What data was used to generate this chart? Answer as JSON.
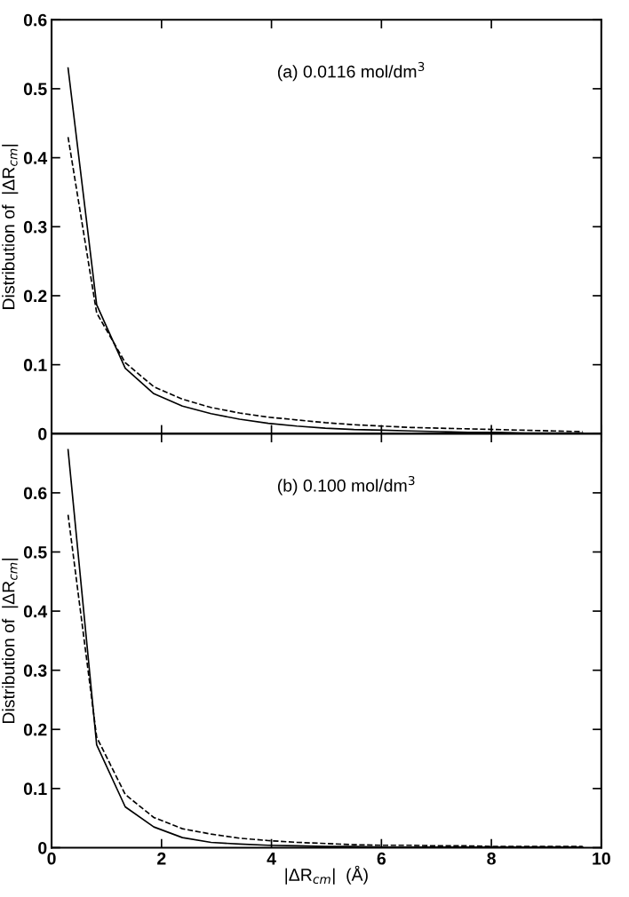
{
  "chart_data": [
    {
      "type": "line",
      "ylabel": "Distribution of  |ΔR$_{cm}$|",
      "annotations": [
        "(a) 0.0116 mol/dm$^{3}$"
      ],
      "x": [
        0.3,
        0.82,
        1.34,
        1.86,
        2.38,
        2.9,
        3.42,
        3.94,
        4.46,
        4.98,
        5.5,
        6.02,
        6.54,
        7.06,
        7.58,
        8.1,
        8.62,
        9.14,
        9.66
      ],
      "series": [
        {
          "color": "#000000",
          "line_style": "solid",
          "values": [
            0.53,
            0.187,
            0.095,
            0.058,
            0.04,
            0.029,
            0.021,
            0.015,
            0.011,
            0.008,
            0.006,
            0.005,
            0.004,
            0.003,
            0.002,
            0.002,
            0.001,
            0.001,
            0.001
          ]
        },
        {
          "color": "#000000",
          "line_style": "dashed",
          "values": [
            0.43,
            0.175,
            0.103,
            0.068,
            0.05,
            0.038,
            0.03,
            0.024,
            0.02,
            0.016,
            0.013,
            0.011,
            0.009,
            0.008,
            0.007,
            0.006,
            0.005,
            0.004,
            0.003
          ]
        }
      ],
      "xlim": [
        0,
        10
      ],
      "xticks": [
        0,
        2,
        4,
        6,
        8,
        10
      ],
      "ylim": [
        0,
        0.6
      ],
      "yticks": [
        0,
        0.1,
        0.2,
        0.3,
        0.4,
        0.5,
        0.6
      ],
      "tick_labels": "y",
      "grid": false,
      "legend": false
    },
    {
      "type": "line",
      "xlabel": "|ΔR$_{cm}$|  (Å)",
      "ylabel": "Distribution of  |ΔR$_{cm}$|",
      "annotations": [
        "(b) 0.100 mol/dm$^{3}$"
      ],
      "x": [
        0.3,
        0.82,
        1.34,
        1.86,
        2.38,
        2.9,
        3.42,
        3.94,
        4.46,
        4.98,
        5.5,
        6.02,
        6.54,
        7.06,
        7.58,
        8.1,
        8.62,
        9.14,
        9.66
      ],
      "series": [
        {
          "color": "#000000",
          "line_style": "solid",
          "values": [
            0.673,
            0.174,
            0.069,
            0.035,
            0.017,
            0.009,
            0.006,
            0.004,
            0.003,
            0.002,
            0.002,
            0.001,
            0.001,
            0.001,
            0.001,
            0.001,
            0.001,
            0.001,
            0.001
          ]
        },
        {
          "color": "#000000",
          "line_style": "dashed",
          "values": [
            0.563,
            0.187,
            0.09,
            0.051,
            0.032,
            0.023,
            0.016,
            0.012,
            0.009,
            0.007,
            0.005,
            0.004,
            0.004,
            0.003,
            0.003,
            0.002,
            0.002,
            0.002,
            0.002
          ]
        }
      ],
      "xlim": [
        0,
        10
      ],
      "xticks": [
        0,
        2,
        4,
        6,
        8,
        10
      ],
      "ylim": [
        0,
        0.7
      ],
      "yticks": [
        0,
        0.1,
        0.2,
        0.3,
        0.4,
        0.5,
        0.6
      ],
      "grid": false,
      "legend": false
    }
  ]
}
